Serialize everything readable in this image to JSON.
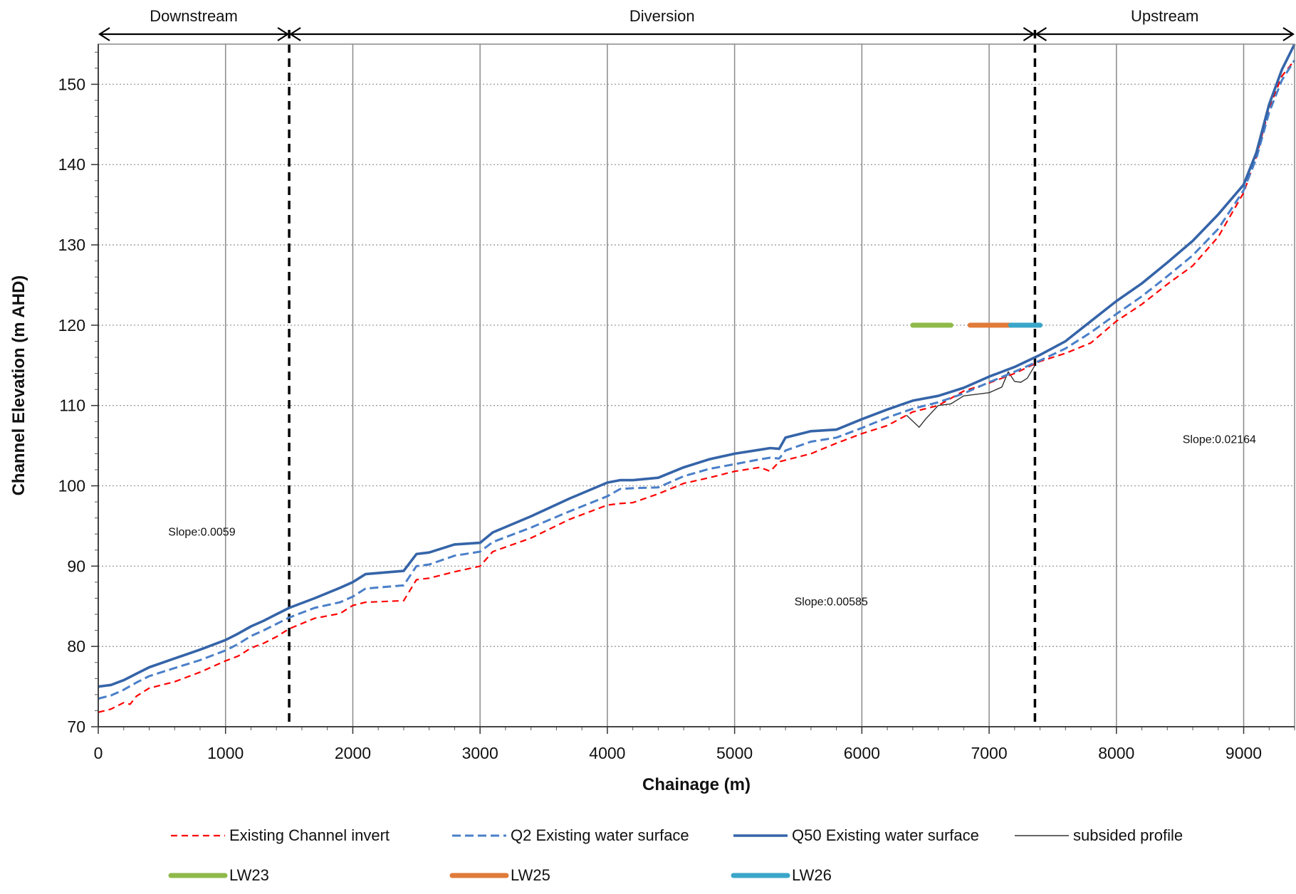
{
  "chart_data": {
    "type": "line",
    "xlabel": "Chainage (m)",
    "ylabel": "Channel Elevation (m AHD)",
    "xlim": [
      0,
      9400
    ],
    "ylim": [
      70,
      155
    ],
    "x_ticks": [
      "0",
      "1000",
      "2000",
      "3000",
      "4000",
      "5000",
      "6000",
      "7000",
      "8000",
      "9000"
    ],
    "y_ticks": [
      "70",
      "80",
      "90",
      "100",
      "110",
      "120",
      "130",
      "140",
      "150"
    ],
    "grid": {
      "x_major": "solid-vertical",
      "y_major": "dotted-horizontal"
    },
    "regions": [
      {
        "label": "Downstream",
        "x_start": 0,
        "x_end": 1500
      },
      {
        "label": "Diversion",
        "x_start": 1500,
        "x_end": 7360
      },
      {
        "label": "Upstream",
        "x_start": 7360,
        "x_end": 9400
      }
    ],
    "region_boundaries": [
      1500,
      7360
    ],
    "annotations": [
      {
        "text": "Slope:0.0059",
        "x": 550,
        "y": 93.8
      },
      {
        "text": "Slope:0.00585",
        "x": 5470,
        "y": 85.1
      },
      {
        "text": "Slope:0.02164",
        "x": 8520,
        "y": 105.3
      }
    ],
    "series": [
      {
        "name": "Existing Channel invert",
        "style": "dashed",
        "color": "#ff0000",
        "x": [
          0,
          100,
          200,
          250,
          300,
          400,
          600,
          800,
          1000,
          1100,
          1200,
          1300,
          1400,
          1500,
          1700,
          1900,
          2000,
          2100,
          2400,
          2500,
          2600,
          2800,
          3000,
          3100,
          3400,
          3700,
          4000,
          4100,
          4200,
          4400,
          4600,
          4800,
          5000,
          5200,
          5280,
          5350,
          5400,
          5600,
          5800,
          6000,
          6200,
          6400,
          6600,
          6800,
          7000,
          7200,
          7400,
          7600,
          7800,
          8000,
          8200,
          8400,
          8600,
          8800,
          9000,
          9100,
          9200,
          9300,
          9400
        ],
        "y": [
          71.8,
          72.2,
          73.0,
          72.8,
          73.8,
          74.8,
          75.6,
          76.8,
          78.2,
          78.8,
          79.8,
          80.4,
          81.2,
          82.2,
          83.5,
          84.1,
          85.1,
          85.5,
          85.7,
          88.3,
          88.5,
          89.3,
          90.0,
          91.8,
          93.5,
          95.8,
          97.6,
          97.8,
          97.9,
          99.0,
          100.3,
          101.0,
          101.8,
          102.3,
          101.8,
          103.0,
          103.2,
          104.0,
          105.3,
          106.5,
          107.5,
          109.2,
          110.0,
          111.8,
          112.8,
          114.0,
          115.5,
          116.5,
          117.8,
          120.5,
          122.6,
          125.1,
          127.4,
          131.0,
          136.5,
          141.0,
          147.0,
          151.0,
          153.0
        ]
      },
      {
        "name": "Q2 Existing water surface",
        "style": "dashed",
        "color": "#4a7fc8",
        "x": [
          0,
          100,
          200,
          300,
          400,
          600,
          800,
          1000,
          1100,
          1200,
          1300,
          1400,
          1500,
          1700,
          1900,
          2000,
          2100,
          2400,
          2500,
          2600,
          2800,
          3000,
          3100,
          3400,
          3700,
          4000,
          4100,
          4200,
          4400,
          4600,
          4800,
          5000,
          5200,
          5280,
          5350,
          5400,
          5600,
          5800,
          6000,
          6200,
          6400,
          6600,
          6800,
          7000,
          7200,
          7400,
          7600,
          7800,
          8000,
          8200,
          8400,
          8600,
          8800,
          9000,
          9100,
          9200,
          9300,
          9400
        ],
        "y": [
          73.5,
          73.9,
          74.6,
          75.5,
          76.3,
          77.3,
          78.3,
          79.5,
          80.3,
          81.3,
          82.0,
          82.8,
          83.6,
          84.8,
          85.5,
          86.2,
          87.2,
          87.6,
          90.0,
          90.2,
          91.3,
          91.8,
          93.0,
          94.8,
          96.8,
          98.7,
          99.6,
          99.7,
          99.8,
          101.2,
          102.1,
          102.7,
          103.3,
          103.5,
          103.4,
          104.4,
          105.5,
          106.0,
          107.2,
          108.5,
          109.6,
          110.4,
          111.5,
          112.9,
          114.2,
          115.6,
          117.1,
          119.1,
          121.4,
          123.6,
          126.1,
          128.7,
          132.0,
          136.8,
          140.8,
          146.5,
          150.5,
          153.0
        ]
      },
      {
        "name": "Q50 Existing water surface",
        "style": "solid",
        "color": "#3564a8",
        "x": [
          0,
          100,
          200,
          300,
          400,
          600,
          800,
          1000,
          1100,
          1200,
          1300,
          1400,
          1500,
          1700,
          1900,
          2000,
          2100,
          2400,
          2500,
          2600,
          2800,
          3000,
          3100,
          3400,
          3700,
          4000,
          4100,
          4200,
          4400,
          4600,
          4800,
          5000,
          5200,
          5280,
          5350,
          5400,
          5600,
          5800,
          6000,
          6200,
          6400,
          6600,
          6800,
          7000,
          7200,
          7400,
          7600,
          7800,
          8000,
          8200,
          8400,
          8600,
          8800,
          9000,
          9100,
          9200,
          9300,
          9400
        ],
        "y": [
          75.0,
          75.2,
          75.8,
          76.6,
          77.4,
          78.5,
          79.6,
          80.8,
          81.6,
          82.5,
          83.2,
          84.0,
          84.8,
          86.0,
          87.3,
          88.0,
          89.0,
          89.4,
          91.5,
          91.7,
          92.7,
          92.9,
          94.2,
          96.2,
          98.4,
          100.4,
          100.7,
          100.7,
          101.0,
          102.3,
          103.3,
          104.0,
          104.5,
          104.7,
          104.6,
          106.0,
          106.8,
          107.0,
          108.3,
          109.5,
          110.6,
          111.2,
          112.2,
          113.6,
          114.8,
          116.3,
          118.0,
          120.5,
          123.0,
          125.2,
          127.8,
          130.5,
          133.8,
          137.5,
          141.5,
          147.5,
          151.8,
          155.0
        ]
      },
      {
        "name": "subsided profile",
        "style": "solid-thin",
        "color": "#333333",
        "x": [
          6350,
          6450,
          6500,
          6600,
          6700,
          6800,
          6900,
          7000,
          7100,
          7150,
          7200,
          7250,
          7300,
          7360
        ],
        "y": [
          108.8,
          107.3,
          108.3,
          110.0,
          110.2,
          111.2,
          111.4,
          111.6,
          112.3,
          114.2,
          113.0,
          112.9,
          113.4,
          115.0
        ]
      },
      {
        "name": "LW23",
        "style": "thick",
        "color": "#8fba4a",
        "x": [
          6400,
          6700
        ],
        "y": [
          120,
          120
        ]
      },
      {
        "name": "LW25",
        "style": "thick",
        "color": "#e07b39",
        "x": [
          6850,
          7170
        ],
        "y": [
          120,
          120
        ]
      },
      {
        "name": "LW26",
        "style": "thick",
        "color": "#3aa6c9",
        "x": [
          7170,
          7400
        ],
        "y": [
          120,
          120
        ]
      }
    ]
  }
}
